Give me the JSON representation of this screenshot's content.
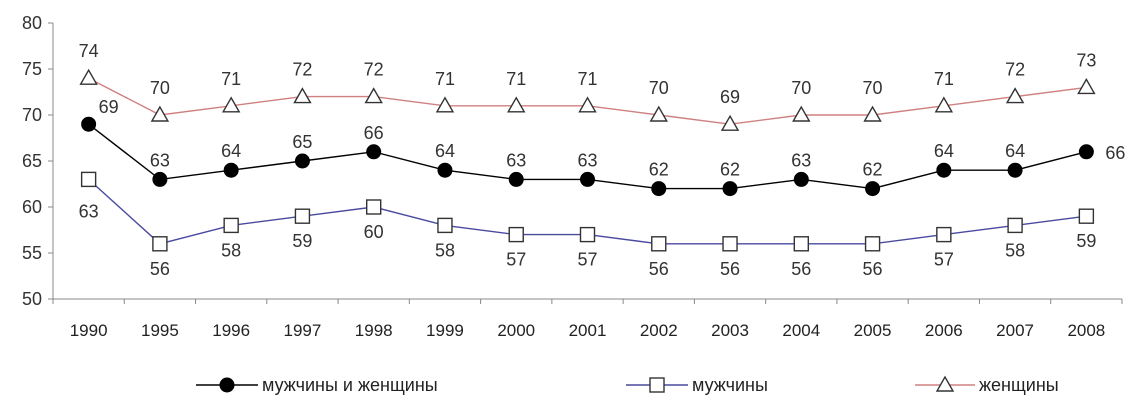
{
  "chart_data": {
    "type": "line",
    "title": "",
    "xlabel": "",
    "ylabel": "",
    "ylim": [
      50,
      80
    ],
    "yticks": [
      50,
      55,
      60,
      65,
      70,
      75,
      80
    ],
    "grid": false,
    "legend_position": "bottom",
    "categories": [
      "1990",
      "1995",
      "1996",
      "1997",
      "1998",
      "1999",
      "2000",
      "2001",
      "2002",
      "2003",
      "2004",
      "2005",
      "2006",
      "2007",
      "2008"
    ],
    "series": [
      {
        "name": "мужчины и женщины",
        "color": "#000000",
        "marker": "filled-circle",
        "values": [
          69,
          63,
          64,
          65,
          66,
          64,
          63,
          63,
          62,
          62,
          63,
          62,
          64,
          64,
          66
        ]
      },
      {
        "name": "мужчины",
        "color": "#4a4aa0",
        "marker": "open-square",
        "values": [
          63,
          56,
          58,
          59,
          60,
          58,
          57,
          57,
          56,
          56,
          56,
          56,
          57,
          58,
          59
        ]
      },
      {
        "name": "женщины",
        "color": "#d08080",
        "marker": "open-triangle",
        "values": [
          74,
          70,
          71,
          72,
          72,
          71,
          71,
          71,
          70,
          69,
          70,
          70,
          71,
          72,
          73
        ]
      }
    ]
  }
}
